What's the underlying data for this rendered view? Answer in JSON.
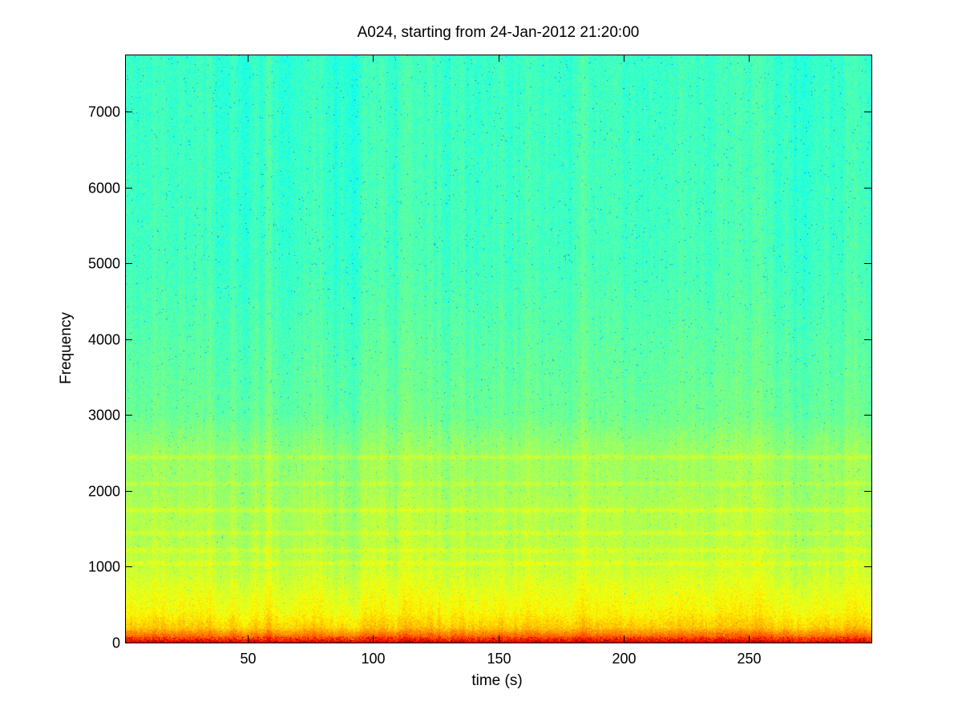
{
  "chart_data": {
    "type": "heatmap",
    "title": "A024, starting from 24-Jan-2012 21:20:00",
    "xlabel": "time (s)",
    "ylabel": "Frequency",
    "xlim": [
      1,
      299
    ],
    "ylim": [
      0,
      7750
    ],
    "xticks": [
      50,
      100,
      150,
      200,
      250
    ],
    "yticks": [
      0,
      1000,
      2000,
      3000,
      4000,
      5000,
      6000,
      7000
    ],
    "grid": false,
    "legend": "none",
    "colormap": "jet",
    "level_profile": {
      "frequency": [
        0,
        60,
        200,
        400,
        700,
        1000,
        1200,
        1450,
        1750,
        2100,
        2450,
        3000,
        4000,
        5000,
        7750
      ],
      "relative_level": [
        0.9,
        0.8,
        0.68,
        0.63,
        0.6,
        0.57,
        0.56,
        0.55,
        0.55,
        0.53,
        0.53,
        0.48,
        0.46,
        0.44,
        0.43
      ]
    },
    "bands_hz": [
      1050,
      1220,
      1450,
      1750,
      2100,
      2450
    ],
    "colors": {
      "background": "#ffffff",
      "axis": "#000000"
    }
  }
}
